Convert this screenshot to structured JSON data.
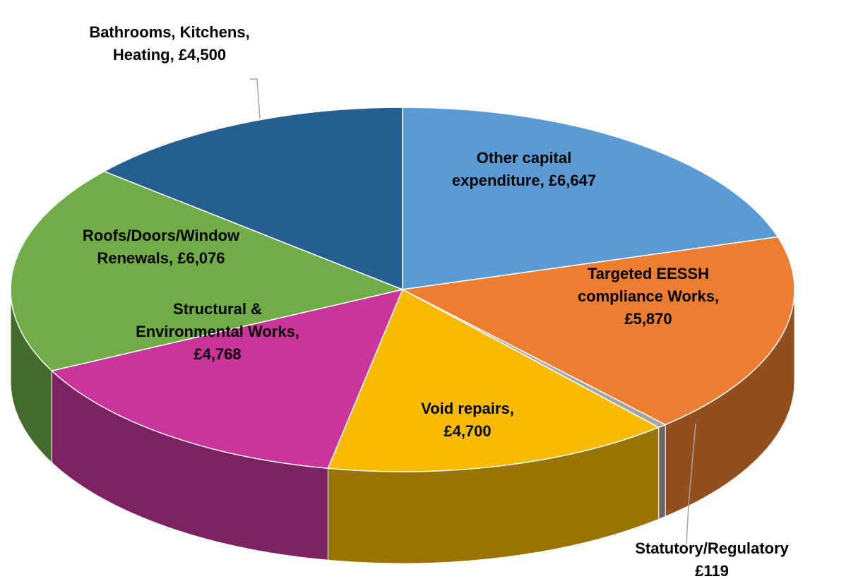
{
  "chart_data": {
    "type": "pie",
    "categories": [
      "Other capital expenditure,",
      "Targeted EESSH compliance Works,",
      "Statutory/Regulatory",
      "Void repairs,",
      "Structural & Environmental Works,",
      "Roofs/Doors/Window Renewals,",
      "Bathrooms, Kitchens, Heating,"
    ],
    "values": [
      6647,
      5870,
      119,
      4700,
      4768,
      6076,
      4500
    ],
    "value_labels": [
      "£6,647",
      "£5,870",
      "£119",
      "£4,700",
      "£4,768",
      "£6,076",
      "£4,500"
    ],
    "colors": [
      "#5b9bd5",
      "#ed7d31",
      "#a5a5a5",
      "#f9bb00",
      "#c9359b",
      "#70ad47",
      "#255e91"
    ]
  }
}
